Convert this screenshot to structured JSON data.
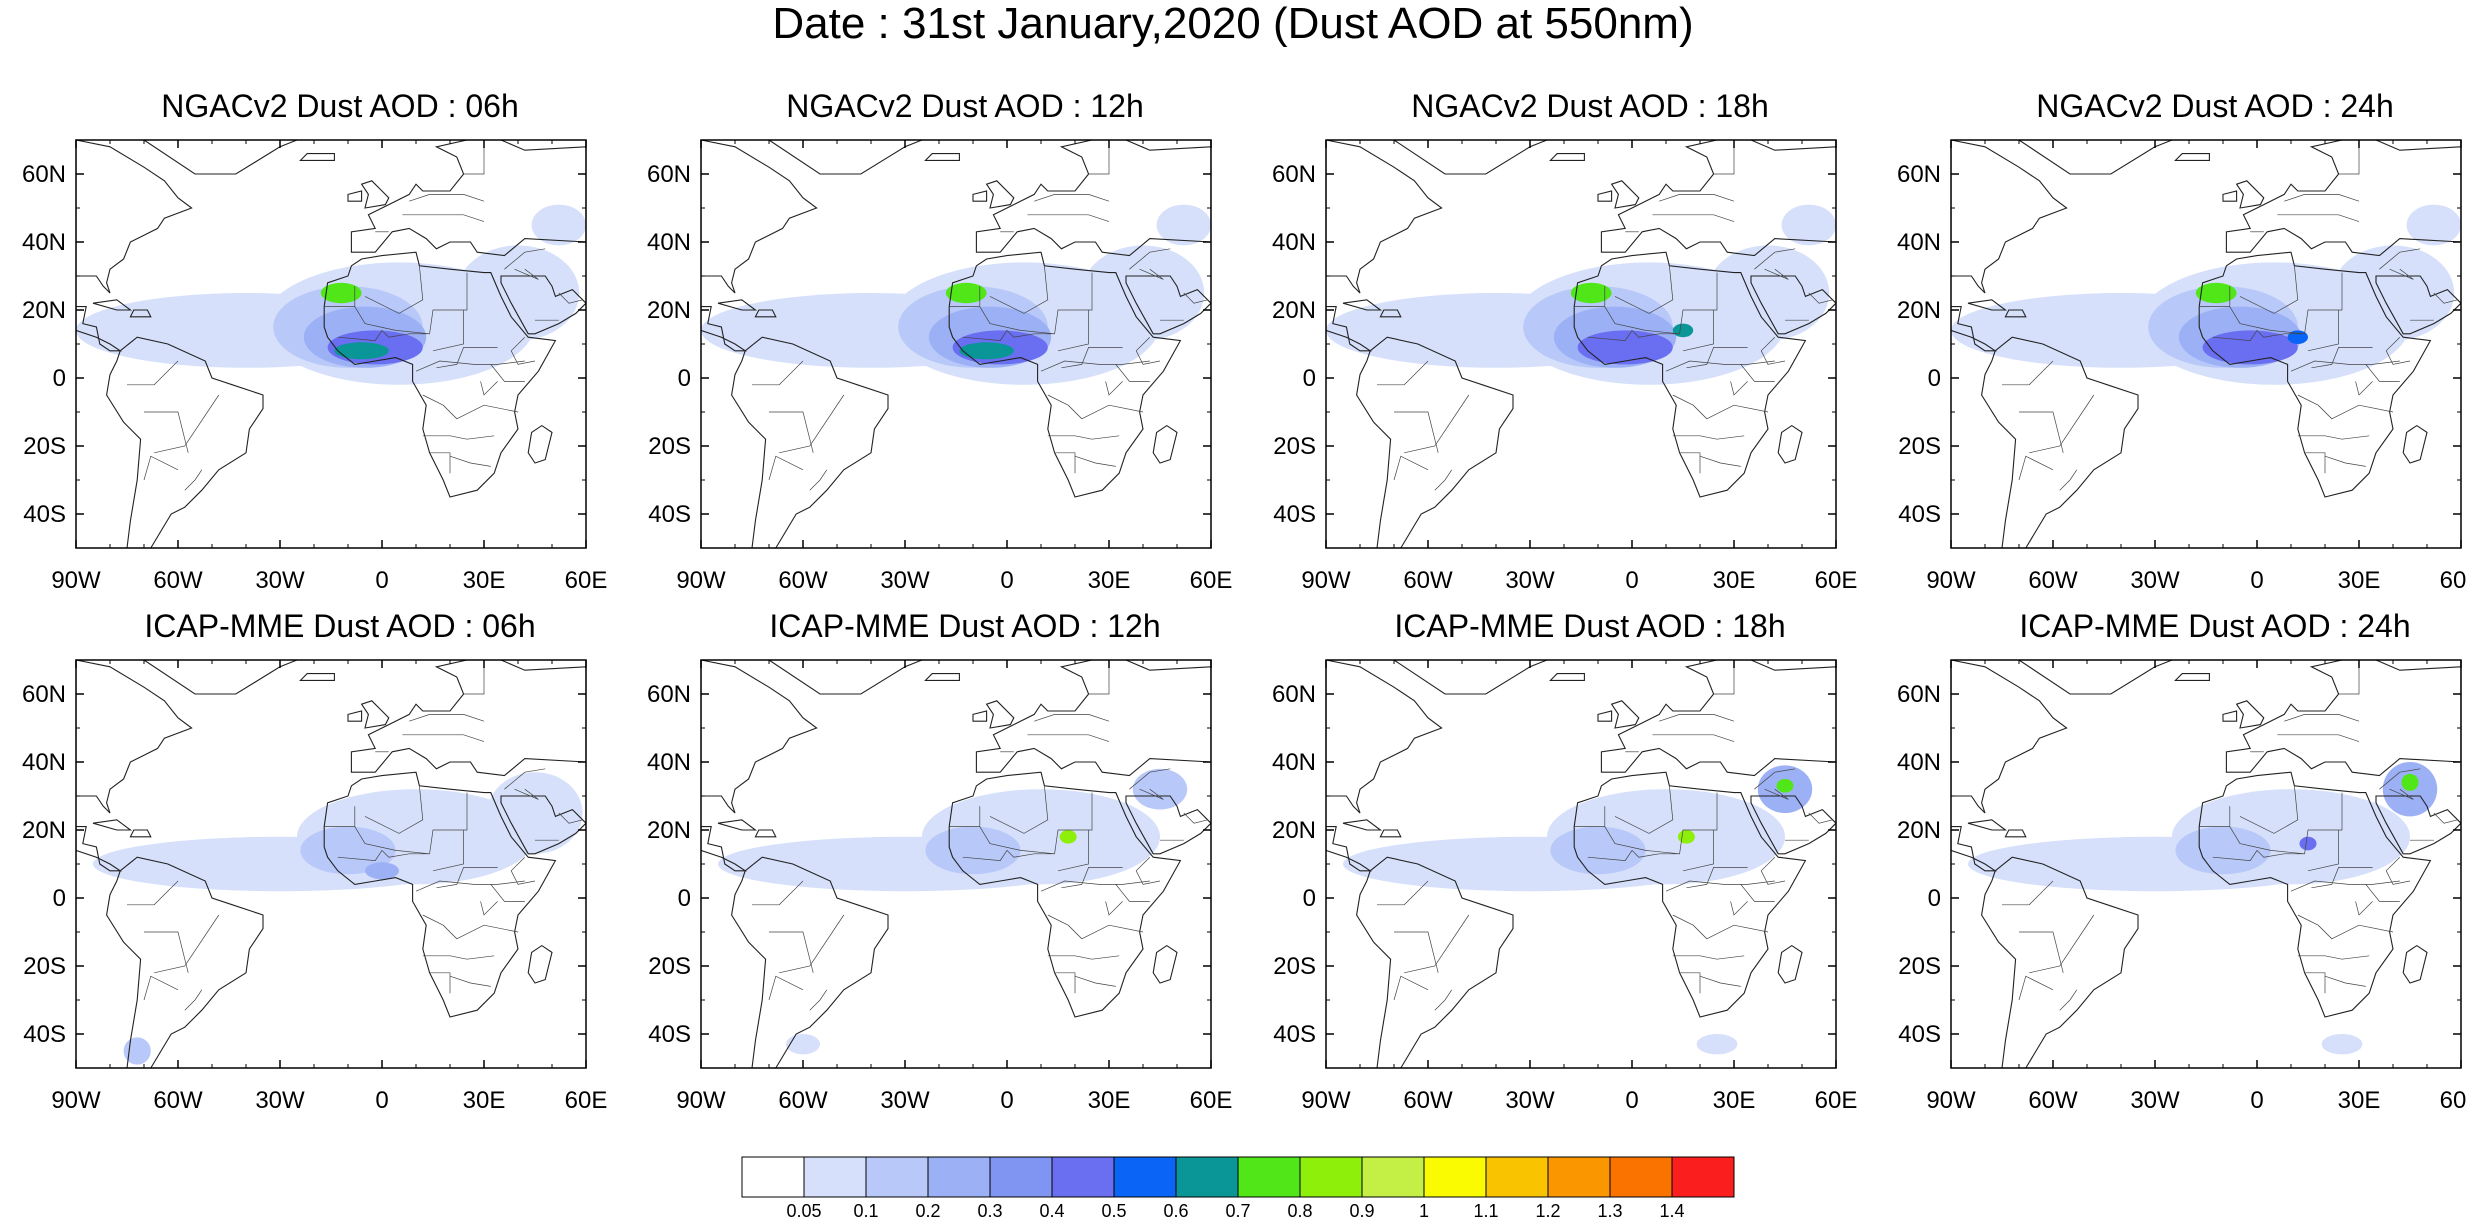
{
  "figure": {
    "title": "Date : 31st January,2020 (Dust AOD at 550nm)"
  },
  "axes": {
    "lat_labels": [
      "60N",
      "40N",
      "20N",
      "0",
      "20S",
      "40S"
    ],
    "lat_values": [
      60,
      40,
      20,
      0,
      -20,
      -40
    ],
    "lon_labels": [
      "90W",
      "60W",
      "30W",
      "0",
      "30E",
      "60E"
    ],
    "lon_values": [
      -90,
      -60,
      -30,
      0,
      30,
      60
    ],
    "lon_range": [
      -90,
      60
    ],
    "lat_range": [
      -50,
      70
    ]
  },
  "panels": [
    {
      "title": "NGACv2 Dust AOD : 06h",
      "model": "NGACv2",
      "hour": "06h",
      "plumes": [
        {
          "lon": -40,
          "lat": 14,
          "rx": 50,
          "ry": 11,
          "level": 1
        },
        {
          "lon": 5,
          "lat": 16,
          "rx": 40,
          "ry": 18,
          "level": 1
        },
        {
          "lon": -10,
          "lat": 15,
          "rx": 22,
          "ry": 12,
          "level": 2
        },
        {
          "lon": -5,
          "lat": 12,
          "rx": 18,
          "ry": 9,
          "level": 3
        },
        {
          "lon": -2,
          "lat": 9,
          "rx": 14,
          "ry": 5,
          "level": 5
        },
        {
          "lon": -12,
          "lat": 25,
          "rx": 6,
          "ry": 3,
          "level": 8
        },
        {
          "lon": -6,
          "lat": 8,
          "rx": 8,
          "ry": 2.5,
          "level": 7
        },
        {
          "lon": 40,
          "lat": 25,
          "rx": 18,
          "ry": 14,
          "level": 1
        },
        {
          "lon": 52,
          "lat": 45,
          "rx": 8,
          "ry": 6,
          "level": 1
        }
      ]
    },
    {
      "title": "NGACv2 Dust AOD : 12h",
      "model": "NGACv2",
      "hour": "12h",
      "plumes": [
        {
          "lon": -40,
          "lat": 14,
          "rx": 50,
          "ry": 11,
          "level": 1
        },
        {
          "lon": 5,
          "lat": 16,
          "rx": 40,
          "ry": 18,
          "level": 1
        },
        {
          "lon": -10,
          "lat": 15,
          "rx": 22,
          "ry": 12,
          "level": 2
        },
        {
          "lon": -5,
          "lat": 12,
          "rx": 18,
          "ry": 9,
          "level": 3
        },
        {
          "lon": -2,
          "lat": 9,
          "rx": 14,
          "ry": 5,
          "level": 5
        },
        {
          "lon": -12,
          "lat": 25,
          "rx": 6,
          "ry": 3,
          "level": 8
        },
        {
          "lon": -6,
          "lat": 8,
          "rx": 8,
          "ry": 2.5,
          "level": 7
        },
        {
          "lon": 40,
          "lat": 25,
          "rx": 18,
          "ry": 14,
          "level": 1
        },
        {
          "lon": 52,
          "lat": 45,
          "rx": 8,
          "ry": 6,
          "level": 1
        }
      ]
    },
    {
      "title": "NGACv2 Dust AOD : 18h",
      "model": "NGACv2",
      "hour": "18h",
      "plumes": [
        {
          "lon": -40,
          "lat": 14,
          "rx": 50,
          "ry": 11,
          "level": 1
        },
        {
          "lon": 5,
          "lat": 16,
          "rx": 40,
          "ry": 18,
          "level": 1
        },
        {
          "lon": -10,
          "lat": 15,
          "rx": 22,
          "ry": 12,
          "level": 2
        },
        {
          "lon": -5,
          "lat": 12,
          "rx": 18,
          "ry": 9,
          "level": 3
        },
        {
          "lon": -2,
          "lat": 9,
          "rx": 14,
          "ry": 5,
          "level": 5
        },
        {
          "lon": -12,
          "lat": 25,
          "rx": 6,
          "ry": 3,
          "level": 8
        },
        {
          "lon": 15,
          "lat": 14,
          "rx": 3,
          "ry": 2,
          "level": 7
        },
        {
          "lon": 40,
          "lat": 25,
          "rx": 18,
          "ry": 14,
          "level": 1
        },
        {
          "lon": 52,
          "lat": 45,
          "rx": 8,
          "ry": 6,
          "level": 1
        }
      ]
    },
    {
      "title": "NGACv2 Dust AOD : 24h",
      "model": "NGACv2",
      "hour": "24h",
      "plumes": [
        {
          "lon": -40,
          "lat": 14,
          "rx": 50,
          "ry": 11,
          "level": 1
        },
        {
          "lon": 5,
          "lat": 16,
          "rx": 40,
          "ry": 18,
          "level": 1
        },
        {
          "lon": -10,
          "lat": 15,
          "rx": 22,
          "ry": 12,
          "level": 2
        },
        {
          "lon": -5,
          "lat": 12,
          "rx": 18,
          "ry": 9,
          "level": 3
        },
        {
          "lon": -2,
          "lat": 9,
          "rx": 14,
          "ry": 5,
          "level": 5
        },
        {
          "lon": -12,
          "lat": 25,
          "rx": 6,
          "ry": 3,
          "level": 8
        },
        {
          "lon": 12,
          "lat": 12,
          "rx": 3,
          "ry": 2,
          "level": 6
        },
        {
          "lon": 40,
          "lat": 25,
          "rx": 18,
          "ry": 14,
          "level": 1
        },
        {
          "lon": 52,
          "lat": 45,
          "rx": 8,
          "ry": 6,
          "level": 1
        }
      ]
    },
    {
      "title": "ICAP-MME Dust AOD : 06h",
      "model": "ICAP-MME",
      "hour": "06h",
      "plumes": [
        {
          "lon": -30,
          "lat": 10,
          "rx": 55,
          "ry": 8,
          "level": 1
        },
        {
          "lon": 10,
          "lat": 18,
          "rx": 35,
          "ry": 14,
          "level": 1
        },
        {
          "lon": -10,
          "lat": 14,
          "rx": 14,
          "ry": 7,
          "level": 2
        },
        {
          "lon": 0,
          "lat": 8,
          "rx": 5,
          "ry": 2.5,
          "level": 3
        },
        {
          "lon": 45,
          "lat": 25,
          "rx": 14,
          "ry": 12,
          "level": 1
        },
        {
          "lon": -72,
          "lat": -45,
          "rx": 4,
          "ry": 4,
          "level": 2
        }
      ]
    },
    {
      "title": "ICAP-MME Dust AOD : 12h",
      "model": "ICAP-MME",
      "hour": "12h",
      "plumes": [
        {
          "lon": -30,
          "lat": 10,
          "rx": 55,
          "ry": 8,
          "level": 1
        },
        {
          "lon": 10,
          "lat": 18,
          "rx": 35,
          "ry": 14,
          "level": 1
        },
        {
          "lon": -10,
          "lat": 14,
          "rx": 14,
          "ry": 7,
          "level": 2
        },
        {
          "lon": 18,
          "lat": 18,
          "rx": 2.5,
          "ry": 2,
          "level": 9
        },
        {
          "lon": 45,
          "lat": 32,
          "rx": 8,
          "ry": 6,
          "level": 2
        },
        {
          "lon": -60,
          "lat": -43,
          "rx": 5,
          "ry": 3,
          "level": 1
        }
      ]
    },
    {
      "title": "ICAP-MME Dust AOD : 18h",
      "model": "ICAP-MME",
      "hour": "18h",
      "plumes": [
        {
          "lon": -30,
          "lat": 10,
          "rx": 55,
          "ry": 8,
          "level": 1
        },
        {
          "lon": 10,
          "lat": 18,
          "rx": 35,
          "ry": 14,
          "level": 1
        },
        {
          "lon": -10,
          "lat": 14,
          "rx": 14,
          "ry": 7,
          "level": 2
        },
        {
          "lon": 16,
          "lat": 18,
          "rx": 2.5,
          "ry": 2,
          "level": 9
        },
        {
          "lon": 45,
          "lat": 32,
          "rx": 8,
          "ry": 7,
          "level": 3
        },
        {
          "lon": 45,
          "lat": 33,
          "rx": 2.5,
          "ry": 2,
          "level": 8
        },
        {
          "lon": 25,
          "lat": -43,
          "rx": 6,
          "ry": 3,
          "level": 1
        }
      ]
    },
    {
      "title": "ICAP-MME Dust AOD : 24h",
      "model": "ICAP-MME",
      "hour": "24h",
      "plumes": [
        {
          "lon": -30,
          "lat": 10,
          "rx": 55,
          "ry": 8,
          "level": 1
        },
        {
          "lon": 10,
          "lat": 18,
          "rx": 35,
          "ry": 14,
          "level": 1
        },
        {
          "lon": -10,
          "lat": 14,
          "rx": 14,
          "ry": 7,
          "level": 2
        },
        {
          "lon": 15,
          "lat": 16,
          "rx": 2.5,
          "ry": 2,
          "level": 5
        },
        {
          "lon": 45,
          "lat": 32,
          "rx": 8,
          "ry": 8,
          "level": 3
        },
        {
          "lon": 45,
          "lat": 34,
          "rx": 2.5,
          "ry": 2.5,
          "level": 8
        },
        {
          "lon": 25,
          "lat": -43,
          "rx": 6,
          "ry": 3,
          "level": 1
        }
      ]
    }
  ],
  "colorbar": {
    "labels": [
      "0.05",
      "0.1",
      "0.2",
      "0.3",
      "0.4",
      "0.5",
      "0.6",
      "0.7",
      "0.8",
      "0.9",
      "1",
      "1.1",
      "1.2",
      "1.3",
      "1.4"
    ],
    "colors": [
      "#ffffff",
      "#d6e0fb",
      "#b8c8f8",
      "#9cb0f5",
      "#8094f2",
      "#6a6ef0",
      "#0a64f5",
      "#0a9696",
      "#50e618",
      "#8ef00a",
      "#c4f046",
      "#fafa00",
      "#fac300",
      "#fa9600",
      "#fa7300",
      "#fa1e1e"
    ]
  }
}
